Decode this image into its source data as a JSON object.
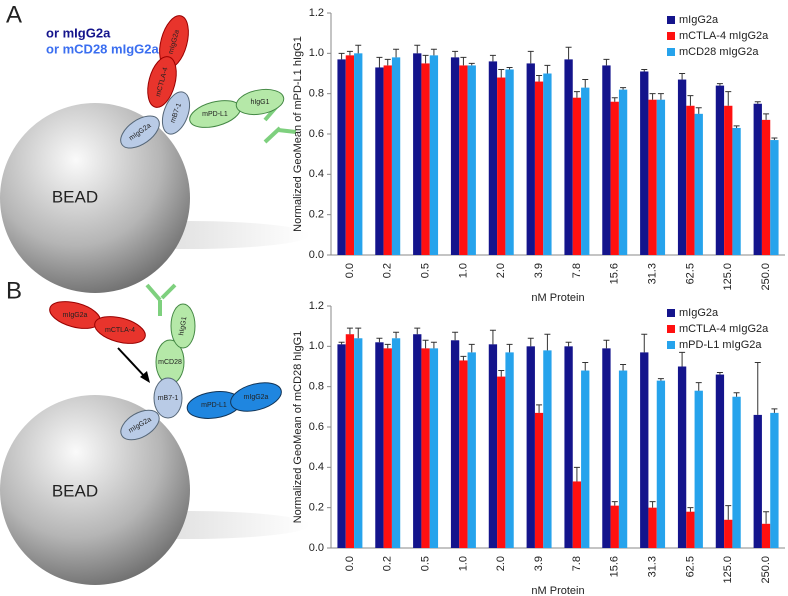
{
  "diagrams": [
    {
      "label": "A",
      "notes": [
        "or mIgG2a",
        "or mCD28 mIgG2a"
      ],
      "bead": "BEAD",
      "domains": [
        "mIgG2a",
        "mCTLA-4",
        "mB7-1",
        "mPD-L1",
        "hIgG1",
        "mIgG2a"
      ]
    },
    {
      "label": "B",
      "bead": "BEAD",
      "domains": [
        "mIgG2a",
        "mCTLA-4",
        "mCD28",
        "hIgG1",
        "mB7-1",
        "mPD-L1",
        "mIgG2a",
        "mIgG2a"
      ]
    }
  ],
  "chart_data": [
    {
      "type": "bar",
      "xlabel": "nM Protein",
      "ylabel": "Normalized GeoMean of mPD-L1 hIgG1",
      "categories": [
        "0.0",
        "0.2",
        "0.5",
        "1.0",
        "2.0",
        "3.9",
        "7.8",
        "15.6",
        "31.3",
        "62.5",
        "125.0",
        "250.0"
      ],
      "ylim": [
        0,
        1.2
      ],
      "yticks": [
        {
          "value": 0,
          "label": "0.0"
        },
        {
          "value": 0.2,
          "label": "0.2"
        },
        {
          "value": 0.4,
          "label": "0.4"
        },
        {
          "value": 0.6,
          "label": "0.6"
        },
        {
          "value": 0.8,
          "label": "0.8"
        },
        {
          "value": 1,
          "label": "1.0"
        },
        {
          "value": 1.2,
          "label": "1.2"
        }
      ],
      "legend": "upper right",
      "series": [
        {
          "name": "mIgG2a",
          "color": "#14148c",
          "values": [
            0.97,
            0.93,
            1.0,
            0.98,
            0.96,
            0.95,
            0.97,
            0.94,
            0.91,
            0.87,
            0.84,
            0.75
          ],
          "errors": [
            0.03,
            0.05,
            0.04,
            0.03,
            0.03,
            0.06,
            0.06,
            0.03,
            0.01,
            0.03,
            0.01,
            0.01
          ]
        },
        {
          "name": "mCTLA-4 mIgG2a",
          "color": "#ff1010",
          "values": [
            0.99,
            0.94,
            0.95,
            0.94,
            0.88,
            0.86,
            0.78,
            0.76,
            0.77,
            0.74,
            0.74,
            0.67
          ],
          "errors": [
            0.02,
            0.03,
            0.04,
            0.04,
            0.04,
            0.03,
            0.03,
            0.02,
            0.03,
            0.05,
            0.07,
            0.03
          ]
        },
        {
          "name": "mCD28 mIgG2a",
          "color": "#26a3ec",
          "values": [
            1.0,
            0.98,
            0.99,
            0.94,
            0.92,
            0.9,
            0.83,
            0.82,
            0.77,
            0.7,
            0.63,
            0.57
          ],
          "errors": [
            0.04,
            0.04,
            0.03,
            0.01,
            0.01,
            0.04,
            0.04,
            0.01,
            0.03,
            0.03,
            0.01,
            0.01
          ]
        }
      ]
    },
    {
      "type": "bar",
      "xlabel": "nM Protein",
      "ylabel": "Normalized GeoMean of mCD28 hIgG1",
      "categories": [
        "0.0",
        "0.2",
        "0.5",
        "1.0",
        "2.0",
        "3.9",
        "7.8",
        "15.6",
        "31.3",
        "62.5",
        "125.0",
        "250.0"
      ],
      "ylim": [
        0,
        1.2
      ],
      "yticks": [
        {
          "value": 0,
          "label": "0.0"
        },
        {
          "value": 0.2,
          "label": "0.2"
        },
        {
          "value": 0.4,
          "label": "0.4"
        },
        {
          "value": 0.6,
          "label": "0.6"
        },
        {
          "value": 0.8,
          "label": "0.8"
        },
        {
          "value": 1,
          "label": "1.0"
        },
        {
          "value": 1.2,
          "label": "1.2"
        }
      ],
      "legend": "upper right",
      "series": [
        {
          "name": "mIgG2a",
          "color": "#14148c",
          "values": [
            1.01,
            1.02,
            1.06,
            1.03,
            1.01,
            1.0,
            1.0,
            0.99,
            0.97,
            0.9,
            0.86,
            0.66
          ],
          "errors": [
            0.01,
            0.02,
            0.03,
            0.04,
            0.07,
            0.04,
            0.02,
            0.04,
            0.09,
            0.07,
            0.01,
            0.26
          ]
        },
        {
          "name": "mCTLA-4 mIgG2a",
          "color": "#ff1010",
          "values": [
            1.06,
            0.99,
            0.99,
            0.93,
            0.85,
            0.67,
            0.33,
            0.21,
            0.2,
            0.18,
            0.14,
            0.12
          ],
          "errors": [
            0.03,
            0.02,
            0.04,
            0.02,
            0.03,
            0.04,
            0.07,
            0.02,
            0.03,
            0.02,
            0.07,
            0.06
          ]
        },
        {
          "name": "mPD-L1 mIgG2a",
          "color": "#26a3ec",
          "values": [
            1.04,
            1.04,
            0.99,
            0.97,
            0.97,
            0.98,
            0.88,
            0.88,
            0.83,
            0.78,
            0.75,
            0.67
          ],
          "errors": [
            0.05,
            0.03,
            0.03,
            0.04,
            0.04,
            0.08,
            0.04,
            0.03,
            0.01,
            0.04,
            0.02,
            0.02
          ]
        }
      ]
    }
  ]
}
